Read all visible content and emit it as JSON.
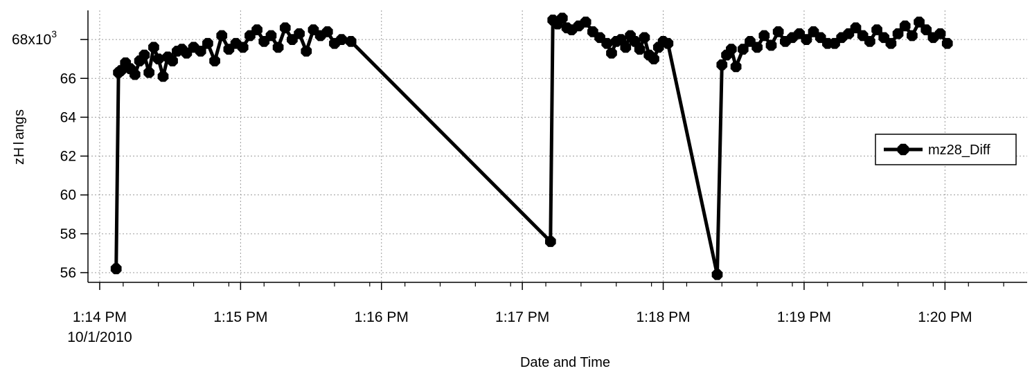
{
  "chart_data": {
    "type": "line",
    "title": "",
    "xlabel": "Date and Time",
    "ylabel": "sgnalHz",
    "y_exponent_label": "x10",
    "y_exponent_power": "3",
    "ylim": [
      55.5,
      69.5
    ],
    "xlim": [
      "1:13:55 PM",
      "1:20:35 PM"
    ],
    "x_ticks": [
      {
        "value": "1:14 PM",
        "label": "1:14 PM",
        "sublabel": "10/1/2010"
      },
      {
        "value": "1:15 PM",
        "label": "1:15 PM"
      },
      {
        "value": "1:16 PM",
        "label": "1:16 PM"
      },
      {
        "value": "1:17 PM",
        "label": "1:17 PM"
      },
      {
        "value": "1:18 PM",
        "label": "1:18 PM"
      },
      {
        "value": "1:19 PM",
        "label": "1:19 PM"
      },
      {
        "value": "1:20 PM",
        "label": "1:20 PM"
      }
    ],
    "y_ticks": [
      {
        "value": 56,
        "label": "56"
      },
      {
        "value": 58,
        "label": "58"
      },
      {
        "value": 60,
        "label": "60"
      },
      {
        "value": 62,
        "label": "62"
      },
      {
        "value": 64,
        "label": "64"
      },
      {
        "value": 66,
        "label": "66"
      },
      {
        "value": 68,
        "label": "68"
      }
    ],
    "grid": true,
    "legend_position": "right",
    "series": [
      {
        "name": "mz28_Diff",
        "color": "#000000",
        "marker": "octagon",
        "x": [
          "1:14:07",
          "1:14:08",
          "1:14:09",
          "1:14:11",
          "1:14:13",
          "1:14:15",
          "1:14:17",
          "1:14:19",
          "1:14:21",
          "1:14:23",
          "1:14:25",
          "1:14:27",
          "1:14:29",
          "1:14:31",
          "1:14:33",
          "1:14:35",
          "1:14:37",
          "1:14:40",
          "1:14:43",
          "1:14:46",
          "1:14:49",
          "1:14:52",
          "1:14:55",
          "1:14:58",
          "1:15:01",
          "1:15:04",
          "1:15:07",
          "1:15:10",
          "1:15:13",
          "1:15:16",
          "1:15:19",
          "1:15:22",
          "1:15:25",
          "1:15:28",
          "1:15:31",
          "1:15:34",
          "1:15:37",
          "1:15:40",
          "1:15:43",
          "1:15:47",
          "1:17:12",
          "1:17:13",
          "1:17:15",
          "1:17:17",
          "1:17:19",
          "1:17:21",
          "1:17:24",
          "1:17:27",
          "1:17:30",
          "1:17:33",
          "1:17:36",
          "1:17:38",
          "1:17:40",
          "1:17:42",
          "1:17:44",
          "1:17:46",
          "1:17:48",
          "1:17:50",
          "1:17:52",
          "1:17:54",
          "1:17:56",
          "1:17:58",
          "1:18:00",
          "1:18:02",
          "1:18:23",
          "1:18:25",
          "1:18:27",
          "1:18:29",
          "1:18:31",
          "1:18:34",
          "1:18:37",
          "1:18:40",
          "1:18:43",
          "1:18:46",
          "1:18:49",
          "1:18:52",
          "1:18:55",
          "1:18:58",
          "1:19:01",
          "1:19:04",
          "1:19:07",
          "1:19:10",
          "1:19:13",
          "1:19:16",
          "1:19:19",
          "1:19:22",
          "1:19:25",
          "1:19:28",
          "1:19:31",
          "1:19:34",
          "1:19:37",
          "1:19:40",
          "1:19:43",
          "1:19:46",
          "1:19:49",
          "1:19:52",
          "1:19:55",
          "1:19:58",
          "1:20:01"
        ],
        "values": [
          56.2,
          66.3,
          66.4,
          66.8,
          66.5,
          66.2,
          66.9,
          67.2,
          66.3,
          67.6,
          67.0,
          66.1,
          67.1,
          66.9,
          67.4,
          67.5,
          67.3,
          67.6,
          67.4,
          67.8,
          66.9,
          68.2,
          67.5,
          67.8,
          67.6,
          68.2,
          68.5,
          67.9,
          68.2,
          67.6,
          68.6,
          68.0,
          68.3,
          67.4,
          68.5,
          68.2,
          68.4,
          67.8,
          68.0,
          67.9,
          57.6,
          69.0,
          68.8,
          69.1,
          68.6,
          68.5,
          68.7,
          68.9,
          68.4,
          68.1,
          67.8,
          67.3,
          67.9,
          68.0,
          67.6,
          68.2,
          67.9,
          67.5,
          68.1,
          67.2,
          67.0,
          67.6,
          67.9,
          67.8,
          55.9,
          66.7,
          67.2,
          67.5,
          66.6,
          67.5,
          67.9,
          67.6,
          68.2,
          67.7,
          68.4,
          67.9,
          68.1,
          68.3,
          68.0,
          68.4,
          68.1,
          67.8,
          67.8,
          68.1,
          68.3,
          68.6,
          68.2,
          67.9,
          68.5,
          68.1,
          67.8,
          68.3,
          68.7,
          68.2,
          68.9,
          68.5,
          68.1,
          68.3,
          67.8
        ]
      }
    ]
  }
}
